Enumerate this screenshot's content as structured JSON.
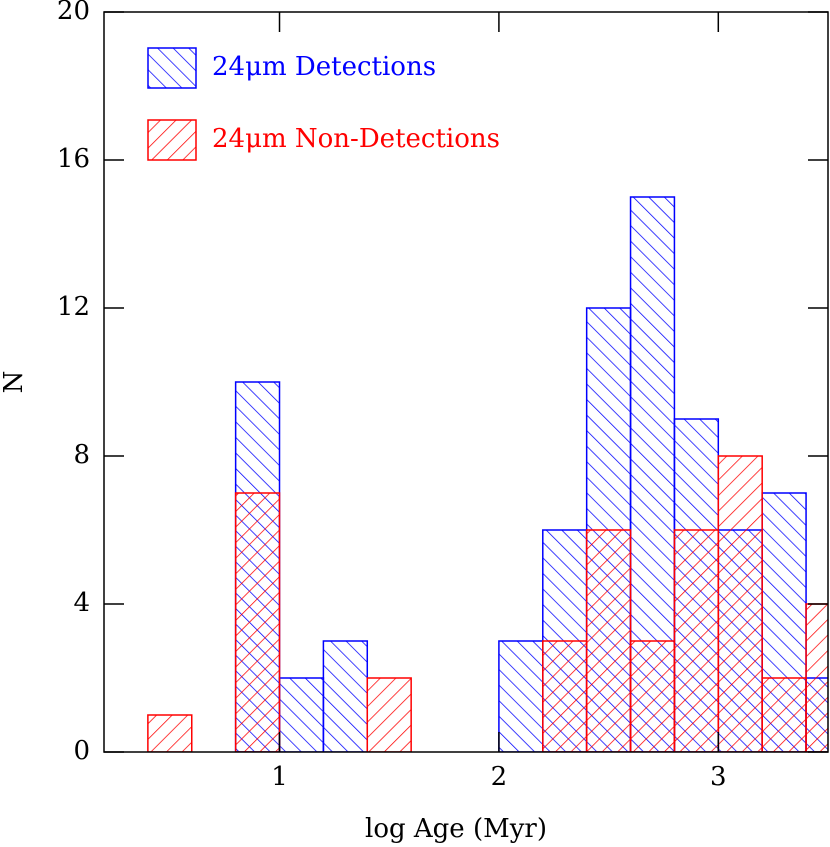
{
  "chart_data": {
    "type": "histogram",
    "xlabel": "log Age (Myr)",
    "ylabel": "N",
    "bins": [
      0.4,
      0.6,
      0.8,
      1.0,
      1.2,
      1.4,
      1.6,
      1.8,
      2.0,
      2.2,
      2.4,
      2.6,
      2.8,
      3.0,
      3.2,
      3.4,
      3.6
    ],
    "series": [
      {
        "name": "24μm Detections",
        "color": "#0000ff",
        "hatch": "backslash",
        "values": [
          0,
          0,
          10,
          2,
          3,
          0,
          0,
          0,
          3,
          6,
          12,
          15,
          9,
          6,
          7,
          2
        ]
      },
      {
        "name": "24μm Non-Detections",
        "color": "#ff0000",
        "hatch": "slash",
        "values": [
          1,
          0,
          7,
          0,
          0,
          2,
          0,
          0,
          0,
          3,
          6,
          3,
          6,
          8,
          2,
          4
        ]
      }
    ],
    "xlim": [
      0.2,
      3.5
    ],
    "xticks": [
      1,
      2,
      3
    ],
    "ylim": [
      0,
      20
    ],
    "yticks": [
      0,
      4,
      8,
      12,
      16,
      20
    ]
  }
}
